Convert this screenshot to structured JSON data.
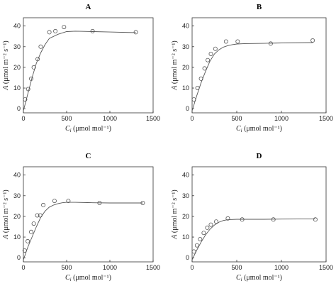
{
  "chart_data": [
    {
      "type": "scatter",
      "title": "A",
      "xlabel": "C_i (μmol mol⁻¹)",
      "ylabel": "A (μmol m⁻² s⁻¹)",
      "xlim": [
        0,
        1500
      ],
      "ylim": [
        -2,
        44
      ],
      "xticks": [
        0,
        500,
        1000,
        1500
      ],
      "yticks": [
        0,
        10,
        20,
        30,
        40
      ],
      "series": [
        {
          "kind": "points",
          "x": [
            20,
            55,
            90,
            120,
            165,
            200,
            300,
            370,
            470,
            800,
            1300
          ],
          "y": [
            4.5,
            9.5,
            14.5,
            20,
            24,
            30,
            37,
            37.5,
            39.5,
            37.5,
            37
          ]
        },
        {
          "kind": "line",
          "x": [
            0,
            50,
            100,
            150,
            200,
            250,
            300,
            400,
            500,
            600,
            700,
            800,
            1000,
            1300
          ],
          "y": [
            -1,
            7,
            15,
            22,
            27,
            31,
            34,
            36,
            37.3,
            37.5,
            37.4,
            37.3,
            37.1,
            36.8
          ]
        }
      ]
    },
    {
      "type": "scatter",
      "title": "B",
      "xlabel": "C_i (μmol mol⁻¹)",
      "ylabel": "A (μmol m⁻² s⁻¹)",
      "xlim": [
        0,
        1500
      ],
      "ylim": [
        -2,
        44
      ],
      "xticks": [
        0,
        500,
        1000,
        1500
      ],
      "yticks": [
        0,
        10,
        20,
        30,
        40
      ],
      "series": [
        {
          "kind": "points",
          "x": [
            20,
            60,
            100,
            140,
            175,
            210,
            260,
            380,
            510,
            880,
            1350
          ],
          "y": [
            4.5,
            10,
            14.5,
            19.5,
            23.5,
            26.5,
            29,
            32.5,
            32.5,
            31.5,
            33
          ]
        },
        {
          "kind": "line",
          "x": [
            0,
            50,
            100,
            150,
            200,
            250,
            300,
            350,
            400,
            450,
            500,
            600,
            800,
            1000,
            1350
          ],
          "y": [
            -1,
            6,
            12.5,
            18,
            23,
            26.5,
            28.5,
            29.8,
            30.5,
            31,
            31.3,
            31.5,
            31.6,
            31.8,
            32
          ]
        }
      ]
    },
    {
      "type": "scatter",
      "title": "C",
      "xlabel": "C_i (μmol mol⁻¹)",
      "ylabel": "A (μmol m⁻² s⁻¹)",
      "xlim": [
        0,
        1500
      ],
      "ylim": [
        -2,
        44
      ],
      "xticks": [
        0,
        500,
        1000,
        1500
      ],
      "yticks": [
        0,
        10,
        20,
        30,
        40
      ],
      "series": [
        {
          "kind": "points",
          "x": [
            15,
            50,
            90,
            120,
            160,
            195,
            230,
            360,
            520,
            880,
            1380
          ],
          "y": [
            3.5,
            8,
            12.5,
            16.5,
            20.5,
            20.5,
            25.5,
            27.5,
            27.5,
            26.5,
            26.5
          ]
        },
        {
          "kind": "line",
          "x": [
            0,
            50,
            100,
            150,
            200,
            250,
            300,
            350,
            400,
            450,
            500,
            600,
            800,
            1000,
            1380
          ],
          "y": [
            -1,
            5,
            10,
            15,
            19.5,
            22.5,
            24.5,
            25.5,
            26.2,
            26.6,
            26.8,
            26.8,
            26.6,
            26.5,
            26.5
          ]
        }
      ]
    },
    {
      "type": "scatter",
      "title": "D",
      "xlabel": "C_i (μmol mol⁻¹)",
      "ylabel": "A (μmol m⁻² s⁻¹)",
      "xlim": [
        0,
        1500
      ],
      "ylim": [
        -2,
        44
      ],
      "xticks": [
        0,
        500,
        1000,
        1500
      ],
      "yticks": [
        0,
        10,
        20,
        30,
        40
      ],
      "series": [
        {
          "kind": "points",
          "x": [
            20,
            55,
            90,
            130,
            170,
            210,
            270,
            400,
            560,
            910,
            1380
          ],
          "y": [
            3,
            6,
            9,
            12,
            14.5,
            16,
            17.5,
            19,
            18.5,
            18.5,
            18.5
          ]
        },
        {
          "kind": "line",
          "x": [
            0,
            50,
            100,
            150,
            200,
            250,
            300,
            350,
            400,
            500,
            600,
            800,
            1000,
            1380
          ],
          "y": [
            -1,
            3.5,
            7.5,
            11,
            13.8,
            15.8,
            17.2,
            18,
            18.4,
            18.6,
            18.6,
            18.6,
            18.7,
            18.8
          ]
        }
      ]
    }
  ]
}
